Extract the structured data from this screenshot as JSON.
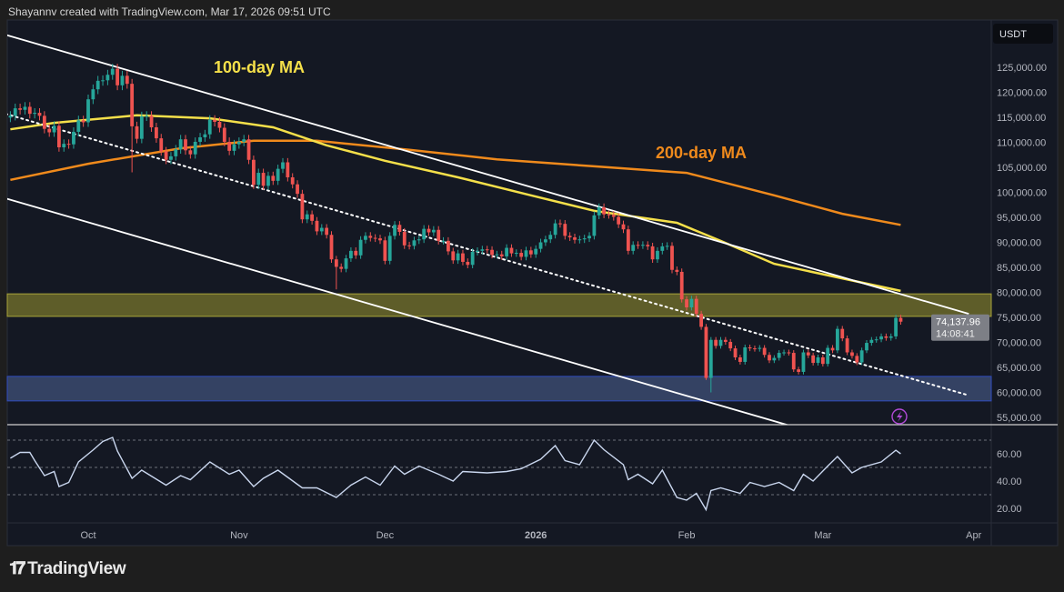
{
  "header": {
    "text": "Shayannv created with TradingView.com, Mar 17, 2026 09:51 UTC"
  },
  "brand": {
    "logo_text": "TV",
    "name": "TradingView"
  },
  "colors": {
    "up": "#26a69a",
    "down": "#ef5350",
    "ma100": "#f5e04a",
    "ma200": "#f08a1c",
    "trendline": "#ffffff",
    "supply_zone": "#6b6a2a",
    "demand_zone": "#3a4a6e",
    "rsi": "#c9d6ee",
    "background": "#141823"
  },
  "chart_data": {
    "type": "candlestick",
    "currency_label": "USDT",
    "price_axis": {
      "ylim": [
        53000,
        131000
      ],
      "ticks": [
        "125,000.00",
        "120,000.00",
        "115,000.00",
        "110,000.00",
        "105,000.00",
        "100,000.00",
        "95,000.00",
        "90,000.00",
        "85,000.00",
        "80,000.00",
        "75,000.00",
        "70,000.00",
        "65,000.00",
        "60,000.00",
        "55,000.00"
      ],
      "tick_values": [
        125000,
        120000,
        115000,
        110000,
        105000,
        100000,
        95000,
        90000,
        85000,
        80000,
        75000,
        70000,
        65000,
        60000,
        55000
      ]
    },
    "time_axis": {
      "ticks": [
        {
          "label": "Oct",
          "date": "2025-10-01"
        },
        {
          "label": "Nov",
          "date": "2025-11-01"
        },
        {
          "label": "Dec",
          "date": "2025-12-01"
        },
        {
          "label": "2026",
          "date": "2026-01-01",
          "bold": true
        },
        {
          "label": "Feb",
          "date": "2026-02-01"
        },
        {
          "label": "Mar",
          "date": "2026-03-01"
        },
        {
          "label": "Apr",
          "date": "2026-04-01"
        }
      ]
    },
    "start_date": "2025-09-15",
    "closes": [
      115300,
      116800,
      116500,
      117100,
      115700,
      115900,
      115300,
      112700,
      112000,
      113300,
      109000,
      109700,
      109600,
      112100,
      114400,
      114000,
      118600,
      120600,
      122300,
      122400,
      123500,
      124700,
      121400,
      123300,
      121700,
      113200,
      110700,
      115200,
      115300,
      113000,
      110800,
      108200,
      106500,
      107200,
      108600,
      110600,
      108400,
      107600,
      110100,
      111000,
      111600,
      114500,
      114100,
      112900,
      110100,
      108300,
      109600,
      110100,
      110600,
      106500,
      101500,
      103900,
      101300,
      103300,
      102300,
      104700,
      106000,
      103000,
      101600,
      99700,
      94600,
      95600,
      94300,
      92200,
      92900,
      91500,
      86600,
      85100,
      84700,
      86800,
      88300,
      87400,
      90500,
      91300,
      90900,
      90800,
      90400,
      86300,
      91300,
      93500,
      92100,
      89400,
      89300,
      90400,
      90600,
      92700,
      92000,
      92500,
      90300,
      90300,
      88200,
      86400,
      87800,
      86100,
      85500,
      88100,
      88300,
      88600,
      88500,
      87500,
      87600,
      87200,
      88900,
      87800,
      87900,
      87100,
      88400,
      87600,
      88700,
      90000,
      90600,
      91500,
      93800,
      93700,
      91300,
      91000,
      90500,
      90600,
      90800,
      91300,
      95400,
      97000,
      95600,
      95500,
      95100,
      93600,
      92600,
      88300,
      89500,
      89400,
      89500,
      89200,
      86600,
      88300,
      89200,
      89300,
      84500,
      84100,
      78600,
      77000,
      78700,
      75700,
      73100,
      62900,
      70500,
      69300,
      70500,
      70100,
      68800,
      67000,
      66100,
      69000,
      68800,
      68700,
      68900,
      67500,
      66400,
      66900,
      67900,
      68000,
      67900,
      64600,
      64100,
      68000,
      67400,
      65900,
      67000,
      65700,
      68900,
      68400,
      72700,
      70800,
      68000,
      67300,
      66000,
      68400,
      69900,
      70500,
      70600,
      71200,
      70900,
      71200,
      74900,
      74137.96
    ],
    "notable_lows": {
      "2025-10-10": 104000,
      "2025-11-21": 80600,
      "2026-02-06": 60000,
      "2026-02-05": 62500
    },
    "last_price": {
      "price": "74,137.96",
      "countdown": "14:08:41"
    },
    "ma100": {
      "label": "100-day MA",
      "points": [
        [
          "2025-09-15",
          112600
        ],
        [
          "2025-09-24",
          113900
        ],
        [
          "2025-10-11",
          115400
        ],
        [
          "2025-10-26",
          114800
        ],
        [
          "2025-11-08",
          113000
        ],
        [
          "2025-11-19",
          109400
        ],
        [
          "2025-12-01",
          106300
        ],
        [
          "2025-12-16",
          103000
        ],
        [
          "2025-12-31",
          99400
        ],
        [
          "2026-01-13",
          96300
        ],
        [
          "2026-01-30",
          93900
        ],
        [
          "2026-02-08",
          90300
        ],
        [
          "2026-02-19",
          85700
        ],
        [
          "2026-03-04",
          83000
        ],
        [
          "2026-03-17",
          80300
        ]
      ]
    },
    "ma200": {
      "label": "200-day MA",
      "points": [
        [
          "2025-09-15",
          102500
        ],
        [
          "2025-10-01",
          105700
        ],
        [
          "2025-10-20",
          108800
        ],
        [
          "2025-11-04",
          110300
        ],
        [
          "2025-11-17",
          110300
        ],
        [
          "2025-12-06",
          108500
        ],
        [
          "2025-12-24",
          106600
        ],
        [
          "2026-01-13",
          105200
        ],
        [
          "2026-02-01",
          103900
        ],
        [
          "2026-02-19",
          99400
        ],
        [
          "2026-03-05",
          95700
        ],
        [
          "2026-03-17",
          93500
        ]
      ]
    },
    "trendlines": [
      {
        "name": "channel-upper",
        "style": "solid",
        "from": [
          "2025-09-14",
          131500
        ],
        "to": [
          "2026-03-31",
          75700
        ]
      },
      {
        "name": "channel-lower",
        "style": "solid",
        "from": [
          "2025-09-14",
          98800
        ],
        "to": [
          "2026-02-22",
          53400
        ]
      },
      {
        "name": "channel-mid",
        "style": "dotted",
        "from": [
          "2025-09-14",
          115700
        ],
        "to": [
          "2026-03-31",
          59400
        ]
      }
    ],
    "zones": [
      {
        "name": "supply-zone",
        "from": 75200,
        "to": 79700
      },
      {
        "name": "demand-zone",
        "from": 58300,
        "to": 63200
      }
    ],
    "rsi": {
      "levels": [
        70,
        50,
        30
      ],
      "ticks": [
        "60.00",
        "40.00",
        "20.00"
      ],
      "tick_values": [
        60,
        40,
        20
      ],
      "ylim": [
        10,
        80
      ],
      "points": [
        [
          "2025-09-15",
          56.7
        ],
        [
          "2025-09-17",
          61
        ],
        [
          "2025-09-19",
          61
        ],
        [
          "2025-09-20",
          55
        ],
        [
          "2025-09-22",
          44
        ],
        [
          "2025-09-24",
          47
        ],
        [
          "2025-09-25",
          36
        ],
        [
          "2025-09-27",
          39
        ],
        [
          "2025-09-29",
          54
        ],
        [
          "2025-10-02",
          62.7
        ],
        [
          "2025-10-04",
          69
        ],
        [
          "2025-10-06",
          72
        ],
        [
          "2025-10-07",
          62
        ],
        [
          "2025-10-10",
          42
        ],
        [
          "2025-10-12",
          48
        ],
        [
          "2025-10-17",
          37
        ],
        [
          "2025-10-20",
          44
        ],
        [
          "2025-10-22",
          41
        ],
        [
          "2025-10-26",
          54
        ],
        [
          "2025-10-30",
          45
        ],
        [
          "2025-11-01",
          48
        ],
        [
          "2025-11-04",
          36
        ],
        [
          "2025-11-06",
          42
        ],
        [
          "2025-11-09",
          48
        ],
        [
          "2025-11-14",
          35
        ],
        [
          "2025-11-17",
          35
        ],
        [
          "2025-11-21",
          28
        ],
        [
          "2025-11-24",
          37
        ],
        [
          "2025-11-27",
          43
        ],
        [
          "2025-11-30",
          37
        ],
        [
          "2025-12-03",
          51
        ],
        [
          "2025-12-05",
          45
        ],
        [
          "2025-12-08",
          51
        ],
        [
          "2025-12-12",
          45
        ],
        [
          "2025-12-15",
          40
        ],
        [
          "2025-12-17",
          47
        ],
        [
          "2025-12-22",
          46
        ],
        [
          "2025-12-26",
          47
        ],
        [
          "2025-12-29",
          49
        ],
        [
          "2026-01-02",
          56
        ],
        [
          "2026-01-05",
          66
        ],
        [
          "2026-01-07",
          55
        ],
        [
          "2026-01-10",
          52
        ],
        [
          "2026-01-13",
          70
        ],
        [
          "2026-01-15",
          63
        ],
        [
          "2026-01-19",
          52
        ],
        [
          "2026-01-20",
          41
        ],
        [
          "2026-01-22",
          45
        ],
        [
          "2026-01-25",
          38
        ],
        [
          "2026-01-27",
          48
        ],
        [
          "2026-01-30",
          28
        ],
        [
          "2026-02-01",
          26
        ],
        [
          "2026-02-03",
          31
        ],
        [
          "2026-02-05",
          19
        ],
        [
          "2026-02-06",
          33
        ],
        [
          "2026-02-08",
          35
        ],
        [
          "2026-02-12",
          31
        ],
        [
          "2026-02-14",
          39
        ],
        [
          "2026-02-17",
          36
        ],
        [
          "2026-02-20",
          39
        ],
        [
          "2026-02-23",
          33
        ],
        [
          "2026-02-25",
          45
        ],
        [
          "2026-02-27",
          40
        ],
        [
          "2026-03-02",
          51
        ],
        [
          "2026-03-04",
          58
        ],
        [
          "2026-03-07",
          46
        ],
        [
          "2026-03-09",
          50
        ],
        [
          "2026-03-13",
          54
        ],
        [
          "2026-03-16",
          62.6
        ],
        [
          "2026-03-17",
          60
        ]
      ]
    }
  }
}
